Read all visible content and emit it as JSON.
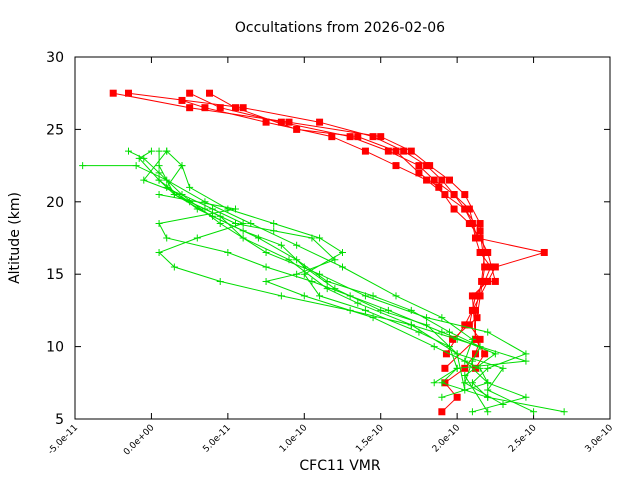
{
  "chart_data": {
    "type": "line",
    "title": "Occultations from 2026-02-06",
    "xlabel": "CFC11 VMR",
    "ylabel": "Altitude (km)",
    "xlim": [
      -5e-11,
      3e-10
    ],
    "ylim": [
      5,
      30
    ],
    "xticks": [
      -5e-11,
      0,
      5e-11,
      1e-10,
      1.5e-10,
      2e-10,
      2.5e-10,
      3e-10
    ],
    "xtick_labels": [
      "-5.0e-11",
      "0.0e+00",
      "5.0e-11",
      "1.0e-10",
      "1.5e-10",
      "2.0e-10",
      "2.5e-10",
      "3.0e-10"
    ],
    "yticks": [
      5,
      10,
      15,
      20,
      25,
      30
    ],
    "ytick_labels": [
      "5",
      "10",
      "15",
      "20",
      "25",
      "30"
    ],
    "colors": {
      "red": "#ff0000",
      "green": "#00dd00",
      "axis": "#000000"
    },
    "series": [
      {
        "name": "profile-red-1",
        "color": "#ff0000",
        "marker": "square",
        "points": [
          [
            1.9e-10,
            5.5
          ],
          [
            2e-10,
            6.5
          ],
          [
            1.92e-10,
            7.5
          ],
          [
            2.05e-10,
            8.5
          ],
          [
            2.12e-10,
            9.5
          ],
          [
            2.15e-10,
            10.5
          ],
          [
            2.08e-10,
            11.5
          ],
          [
            2.1e-10,
            12.5
          ],
          [
            2.12e-10,
            13.5
          ],
          [
            2.18e-10,
            14.5
          ],
          [
            2.22e-10,
            15.5
          ],
          [
            2.15e-10,
            16.5
          ],
          [
            2.12e-10,
            17.5
          ],
          [
            2.1e-10,
            18.5
          ],
          [
            2.05e-10,
            19.5
          ],
          [
            1.98e-10,
            20.5
          ],
          [
            1.9e-10,
            21.5
          ],
          [
            1.8e-10,
            22.5
          ],
          [
            1.65e-10,
            23.5
          ],
          [
            1.45e-10,
            24.5
          ],
          [
            1.1e-10,
            25.5
          ],
          [
            6e-11,
            26.5
          ],
          [
            -1.5e-11,
            27.5
          ]
        ]
      },
      {
        "name": "profile-red-2",
        "color": "#ff0000",
        "marker": "square",
        "points": [
          [
            1.92e-10,
            8.5
          ],
          [
            2.12e-10,
            10.5
          ],
          [
            2.12e-10,
            12.5
          ],
          [
            2.16e-10,
            14.5
          ],
          [
            2.18e-10,
            16.5
          ],
          [
            2.15e-10,
            18.5
          ],
          [
            2.05e-10,
            20.5
          ],
          [
            1.95e-10,
            21.5
          ],
          [
            1.82e-10,
            22.5
          ],
          [
            1.7e-10,
            23.5
          ],
          [
            1.5e-10,
            24.5
          ],
          [
            9e-11,
            25.5
          ],
          [
            2.5e-11,
            26.5
          ],
          [
            -2.5e-11,
            27.5
          ]
        ]
      },
      {
        "name": "profile-red-3",
        "color": "#ff0000",
        "marker": "square",
        "points": [
          [
            1.93e-10,
            9.5
          ],
          [
            2.05e-10,
            11.5
          ],
          [
            2.15e-10,
            13.5
          ],
          [
            2.25e-10,
            15.5
          ],
          [
            2.57e-10,
            16.5
          ],
          [
            2.13e-10,
            17.5
          ],
          [
            2.08e-10,
            19.5
          ],
          [
            1.98e-10,
            20.5
          ],
          [
            1.85e-10,
            21.5
          ],
          [
            1.75e-10,
            22.5
          ],
          [
            1.55e-10,
            23.5
          ],
          [
            1.3e-10,
            24.5
          ],
          [
            8.5e-11,
            25.5
          ],
          [
            4.5e-11,
            26.5
          ],
          [
            2.5e-11,
            27.5
          ]
        ]
      },
      {
        "name": "profile-red-4",
        "color": "#ff0000",
        "marker": "square",
        "points": [
          [
            2.12e-10,
            8.5
          ],
          [
            2.18e-10,
            9.5
          ],
          [
            2.12e-10,
            10.5
          ],
          [
            2.1e-10,
            13.5
          ],
          [
            2.2e-10,
            14.5
          ],
          [
            2.25e-10,
            14.5
          ],
          [
            2.2e-10,
            16.5
          ],
          [
            2.15e-10,
            17.5
          ],
          [
            2.08e-10,
            18.5
          ],
          [
            1.98e-10,
            19.5
          ],
          [
            1.88e-10,
            21.0
          ],
          [
            1.75e-10,
            22.0
          ],
          [
            1.6e-10,
            23.5
          ],
          [
            1.35e-10,
            24.5
          ],
          [
            9.5e-11,
            25.0
          ],
          [
            5.5e-11,
            26.5
          ],
          [
            3.8e-11,
            27.5
          ]
        ]
      },
      {
        "name": "profile-red-5",
        "color": "#ff0000",
        "marker": "square",
        "points": [
          [
            1.97e-10,
            10.5
          ],
          [
            2.13e-10,
            12.0
          ],
          [
            2.18e-10,
            15.5
          ],
          [
            2.15e-10,
            18.0
          ],
          [
            2.05e-10,
            19.5
          ],
          [
            1.92e-10,
            20.5
          ],
          [
            1.8e-10,
            21.5
          ],
          [
            1.6e-10,
            22.5
          ],
          [
            1.4e-10,
            23.5
          ],
          [
            1.18e-10,
            24.5
          ],
          [
            7.5e-11,
            25.5
          ],
          [
            3.5e-11,
            26.5
          ],
          [
            2e-11,
            27.0
          ]
        ]
      },
      {
        "name": "profile-green-1",
        "color": "#00dd00",
        "marker": "plus",
        "points": [
          [
            2.7e-10,
            5.5
          ],
          [
            2.2e-10,
            6.5
          ],
          [
            2.1e-10,
            7.5
          ],
          [
            2.2e-10,
            8.5
          ],
          [
            2.45e-10,
            9.5
          ],
          [
            2.2e-10,
            11.0
          ],
          [
            1.8e-10,
            12.0
          ],
          [
            1.4e-10,
            13.5
          ],
          [
            1.1e-10,
            15.0
          ],
          [
            7.5e-11,
            16.5
          ],
          [
            4.5e-11,
            18.5
          ],
          [
            2e-11,
            20.5
          ],
          [
            5e-12,
            22.0
          ],
          [
            -5e-12,
            23.0
          ],
          [
            -1.5e-11,
            23.5
          ]
        ]
      },
      {
        "name": "profile-green-2",
        "color": "#00dd00",
        "marker": "plus",
        "points": [
          [
            2.1e-10,
            5.5
          ],
          [
            2.45e-10,
            6.5
          ],
          [
            2.2e-10,
            7.5
          ],
          [
            2.05e-10,
            9.0
          ],
          [
            2.1e-10,
            10.5
          ],
          [
            1.9e-10,
            12.0
          ],
          [
            1.6e-10,
            13.5
          ],
          [
            1.25e-10,
            15.5
          ],
          [
            9.5e-11,
            17.0
          ],
          [
            6.5e-11,
            18.5
          ],
          [
            3.5e-11,
            20.0
          ],
          [
            1e-11,
            21.5
          ],
          [
            -1e-11,
            22.5
          ],
          [
            -4.5e-11,
            22.5
          ]
        ]
      },
      {
        "name": "profile-green-3",
        "color": "#00dd00",
        "marker": "plus",
        "points": [
          [
            2.5e-10,
            5.5
          ],
          [
            2.2e-10,
            7.0
          ],
          [
            2.3e-10,
            8.5
          ],
          [
            2e-10,
            9.5
          ],
          [
            1.8e-10,
            11.5
          ],
          [
            1.5e-10,
            12.5
          ],
          [
            1.2e-10,
            14.0
          ],
          [
            1e-10,
            15.5
          ],
          [
            8.5e-11,
            17.0
          ],
          [
            6e-11,
            18.0
          ],
          [
            3e-11,
            19.5
          ],
          [
            5e-12,
            21.5
          ],
          [
            -8e-12,
            23.0
          ],
          [
            0.0,
            23.5
          ]
        ]
      },
      {
        "name": "profile-green-4",
        "color": "#00dd00",
        "marker": "plus",
        "points": [
          [
            2.3e-10,
            6.0
          ],
          [
            2.05e-10,
            7.5
          ],
          [
            2.1e-10,
            9.0
          ],
          [
            2.15e-10,
            10.0
          ],
          [
            1.95e-10,
            11.0
          ],
          [
            1.7e-10,
            12.5
          ],
          [
            1.45e-10,
            13.5
          ],
          [
            1.15e-10,
            14.5
          ],
          [
            9.5e-11,
            16.0
          ],
          [
            7e-11,
            17.5
          ],
          [
            4e-11,
            19.0
          ],
          [
            1.5e-11,
            20.5
          ],
          [
            5e-12,
            22.5
          ],
          [
            5e-12,
            23.5
          ]
        ]
      },
      {
        "name": "profile-green-5",
        "color": "#00dd00",
        "marker": "plus",
        "points": [
          [
            2.2e-10,
            6.5
          ],
          [
            1.9e-10,
            7.5
          ],
          [
            2e-10,
            8.5
          ],
          [
            2.45e-10,
            9.0
          ],
          [
            2e-10,
            10.5
          ],
          [
            1.7e-10,
            11.5
          ],
          [
            1.35e-10,
            13.0
          ],
          [
            1.15e-10,
            14.0
          ],
          [
            9e-11,
            16.0
          ],
          [
            6e-11,
            17.5
          ],
          [
            4.5e-11,
            19.0
          ],
          [
            2.5e-11,
            20.0
          ],
          [
            1e-11,
            21.0
          ],
          [
            2e-11,
            22.5
          ]
        ]
      },
      {
        "name": "profile-green-6",
        "color": "#00dd00",
        "marker": "plus",
        "points": [
          [
            2.2e-10,
            5.5
          ],
          [
            2.05e-10,
            8.0
          ],
          [
            2.25e-10,
            9.5
          ],
          [
            1.9e-10,
            11.0
          ],
          [
            1.55e-10,
            12.5
          ],
          [
            1.3e-10,
            13.5
          ],
          [
            1.05e-10,
            14.5
          ],
          [
            7.5e-11,
            15.5
          ],
          [
            5e-11,
            16.5
          ],
          [
            1e-11,
            17.5
          ],
          [
            5e-12,
            18.5
          ],
          [
            5.5e-11,
            19.5
          ],
          [
            5e-12,
            20.5
          ]
        ]
      },
      {
        "name": "profile-green-7",
        "color": "#00dd00",
        "marker": "plus",
        "points": [
          [
            1.9e-10,
            6.5
          ],
          [
            2.2e-10,
            7.5
          ],
          [
            2.15e-10,
            8.5
          ],
          [
            1.85e-10,
            10.0
          ],
          [
            1.45e-10,
            12.0
          ],
          [
            1e-10,
            13.5
          ],
          [
            7.5e-11,
            14.5
          ],
          [
            9.5e-11,
            15.0
          ],
          [
            1.2e-10,
            16.0
          ],
          [
            1.05e-10,
            17.5
          ],
          [
            8e-11,
            18.0
          ],
          [
            5.5e-11,
            18.5
          ],
          [
            3.5e-11,
            19.5
          ],
          [
            1.5e-11,
            20.5
          ],
          [
            5e-12,
            21.5
          ]
        ]
      },
      {
        "name": "profile-green-8",
        "color": "#00dd00",
        "marker": "plus",
        "points": [
          [
            1.85e-10,
            7.5
          ],
          [
            2e-10,
            8.5
          ],
          [
            1.95e-10,
            10.0
          ],
          [
            1.75e-10,
            11.0
          ],
          [
            1.4e-10,
            12.5
          ],
          [
            1.1e-10,
            13.5
          ],
          [
            1e-10,
            15.0
          ],
          [
            1.25e-10,
            16.5
          ],
          [
            1.1e-10,
            17.5
          ],
          [
            8e-11,
            18.5
          ],
          [
            5e-11,
            19.5
          ],
          [
            2.5e-11,
            21.0
          ],
          [
            2e-11,
            22.5
          ],
          [
            1e-11,
            23.5
          ]
        ]
      },
      {
        "name": "profile-green-9",
        "color": "#00dd00",
        "marker": "plus",
        "points": [
          [
            2.05e-10,
            7.0
          ],
          [
            2e-10,
            9.5
          ],
          [
            1.7e-10,
            11.5
          ],
          [
            1.3e-10,
            12.5
          ],
          [
            8.5e-11,
            13.5
          ],
          [
            4.5e-11,
            14.5
          ],
          [
            1.5e-11,
            15.5
          ],
          [
            5e-12,
            16.5
          ],
          [
            3e-11,
            17.5
          ],
          [
            6e-11,
            18.5
          ],
          [
            4e-11,
            19.5
          ],
          [
            2e-11,
            20.5
          ],
          [
            -5e-12,
            21.5
          ],
          [
            1e-11,
            23.5
          ]
        ]
      }
    ]
  }
}
